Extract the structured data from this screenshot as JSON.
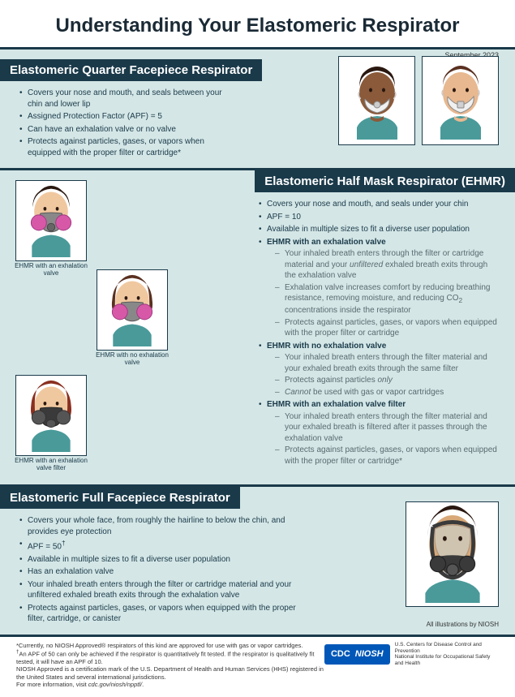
{
  "title": "Understanding Your Elastomeric Respirator",
  "date": "September 2023",
  "section1": {
    "header": "Elastomeric Quarter Facepiece Respirator",
    "items": [
      "Covers your nose and mouth, and seals between your chin and lower lip",
      "Assigned Protection Factor (APF) = 5",
      "Can have an exhalation valve or no valve",
      "Protects against particles, gases, or vapors when equipped with the proper filter or cartridge*"
    ]
  },
  "section2": {
    "header": "Elastomeric Half Mask Respirator (EHMR)",
    "items": [
      "Covers your nose and mouth, and seals under your chin",
      "APF = 10",
      "Available in multiple sizes to fit a diverse user population"
    ],
    "sub1_title": "EHMR with an exhalation valve",
    "sub1": [
      "Your inhaled breath enters through the filter or cartridge material and your <i>unfiltered</i> exhaled breath exits through the exhalation valve",
      "Exhalation valve increases comfort by reducing breathing resistance, removing moisture, and reducing CO<sub>2</sub> concentrations inside the respirator",
      "Protects against particles, gases, or vapors when equipped with the proper filter or cartridge"
    ],
    "sub2_title": "EHMR with no exhalation valve",
    "sub2": [
      "Your inhaled breath enters through the filter material and your exhaled breath exits through the same filter",
      "Protects against particles <i>only</i>",
      "<i>Cannot</i> be used with gas or vapor cartridges"
    ],
    "sub3_title": "EHMR with an exhalation valve filter",
    "sub3": [
      "Your inhaled breath enters through the filter material and your exhaled breath is filtered after it passes through the exhalation valve",
      "Protects against particles, gases, or vapors when equipped with the proper filter or cartridge*"
    ],
    "cap1": "EHMR with an exhalation valve",
    "cap2": "EHMR with no exhalation valve",
    "cap3": "EHMR with an exhalation valve filter"
  },
  "section3": {
    "header": "Elastomeric Full Facepiece Respirator",
    "items": [
      "Covers your whole face, from roughly the hairline to below the chin, and provides eye protection",
      "APF = 50<sup>†</sup>",
      "Available in multiple sizes to fit a diverse user population",
      "Has an exhalation valve",
      "Your inhaled breath enters through the filter or cartridge material and your unfiltered exhaled breath exits through the exhalation valve",
      "Protects against particles, gases, or vapors when equipped with the proper filter, cartridge, or canister"
    ],
    "credit": "All illustrations by NIOSH"
  },
  "footer": {
    "lines": [
      "*Currently, no NIOSH Approved® respirators of this kind are approved for use with gas or vapor cartridges.",
      "<sup>†</sup>An APF of 50 can only be achieved if the respirator is quantitatively fit tested. If the respirator is qualitatively fit tested, it will have an APF of 10.",
      "NIOSH Approved is a certification mark of the U.S. Department of Health and Human Services (HHS) registered in the United States and several international jurisdictions.",
      "For more information, visit <i>cdc.gov/niosh/npptl/</i>."
    ],
    "logo1": "CDC",
    "logo2": "NIOSH",
    "logo_sub": "U.S. Centers for Disease Control and Prevention\nNational Institute for Occupational Safety and Health"
  },
  "colors": {
    "header_bg": "#1a3a4a",
    "section_bg": "#d4e6e6",
    "accent": "#0057b8",
    "skin1": "#8a5a3a",
    "skin2": "#e8b890",
    "skin3": "#f0c8a0",
    "skin4": "#d8a878",
    "hair1": "#2a1810",
    "hair2": "#5a3020",
    "hair3": "#8a3020",
    "shirt": "#4a9a9a",
    "mask_white": "#f0f0f0",
    "mask_gray": "#888",
    "mask_dark": "#3a3a3a",
    "filter_pink": "#d858a8"
  }
}
